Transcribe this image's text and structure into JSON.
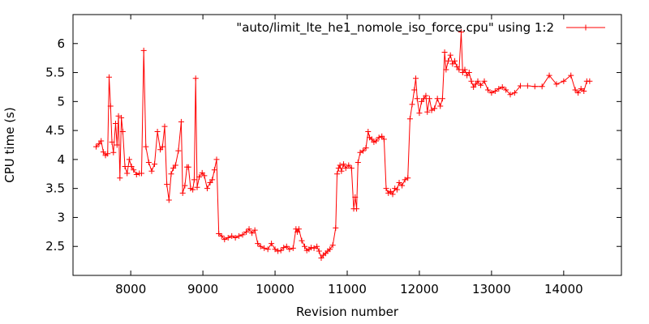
{
  "chart_data": {
    "type": "line",
    "title": "",
    "xlabel": "Revision number",
    "ylabel": "CPU time (s)",
    "xlim": [
      7200,
      14800
    ],
    "ylim": [
      2.0,
      6.5
    ],
    "xticks": [
      8000,
      9000,
      10000,
      11000,
      12000,
      13000,
      14000
    ],
    "yticks": [
      2.5,
      3,
      3.5,
      4,
      4.5,
      5,
      5.5,
      6
    ],
    "xtick_labels": [
      "8000",
      "9000",
      "10000",
      "11000",
      "12000",
      "13000",
      "14000"
    ],
    "ytick_labels": [
      "2.5",
      "3",
      "3.5",
      "4",
      "4.5",
      "5",
      "5.5",
      "6"
    ],
    "grid": false,
    "legend_position": "top-right",
    "colors": {
      "series": "#ff0000",
      "axes": "#000000"
    },
    "series": [
      {
        "name": "\"auto/limit_lte_he1_nomole_iso_force.cpu\" using 1:2",
        "marker": "plus",
        "points": [
          [
            7520,
            4.22
          ],
          [
            7560,
            4.27
          ],
          [
            7590,
            4.32
          ],
          [
            7620,
            4.13
          ],
          [
            7650,
            4.07
          ],
          [
            7680,
            4.1
          ],
          [
            7700,
            5.42
          ],
          [
            7720,
            4.92
          ],
          [
            7740,
            4.3
          ],
          [
            7760,
            4.12
          ],
          [
            7790,
            4.62
          ],
          [
            7810,
            4.25
          ],
          [
            7830,
            4.75
          ],
          [
            7850,
            3.68
          ],
          [
            7870,
            4.72
          ],
          [
            7890,
            4.48
          ],
          [
            7920,
            3.88
          ],
          [
            7950,
            3.76
          ],
          [
            7980,
            4.0
          ],
          [
            8010,
            3.88
          ],
          [
            8040,
            3.82
          ],
          [
            8080,
            3.74
          ],
          [
            8120,
            3.76
          ],
          [
            8150,
            3.76
          ],
          [
            8180,
            5.88
          ],
          [
            8210,
            4.22
          ],
          [
            8250,
            3.95
          ],
          [
            8290,
            3.8
          ],
          [
            8330,
            3.92
          ],
          [
            8370,
            4.48
          ],
          [
            8410,
            4.17
          ],
          [
            8440,
            4.22
          ],
          [
            8470,
            4.57
          ],
          [
            8500,
            3.57
          ],
          [
            8530,
            3.3
          ],
          [
            8560,
            3.75
          ],
          [
            8590,
            3.85
          ],
          [
            8620,
            3.9
          ],
          [
            8660,
            4.15
          ],
          [
            8700,
            4.65
          ],
          [
            8720,
            3.42
          ],
          [
            8750,
            3.55
          ],
          [
            8780,
            3.87
          ],
          [
            8800,
            3.87
          ],
          [
            8830,
            3.5
          ],
          [
            8860,
            3.48
          ],
          [
            8880,
            3.65
          ],
          [
            8900,
            5.4
          ],
          [
            8920,
            3.52
          ],
          [
            8950,
            3.7
          ],
          [
            8990,
            3.77
          ],
          [
            9020,
            3.72
          ],
          [
            9060,
            3.5
          ],
          [
            9100,
            3.6
          ],
          [
            9130,
            3.65
          ],
          [
            9160,
            3.82
          ],
          [
            9190,
            4.0
          ],
          [
            9220,
            2.72
          ],
          [
            9260,
            2.68
          ],
          [
            9300,
            2.62
          ],
          [
            9350,
            2.65
          ],
          [
            9400,
            2.68
          ],
          [
            9450,
            2.65
          ],
          [
            9500,
            2.68
          ],
          [
            9550,
            2.7
          ],
          [
            9600,
            2.75
          ],
          [
            9640,
            2.8
          ],
          [
            9680,
            2.73
          ],
          [
            9720,
            2.78
          ],
          [
            9760,
            2.55
          ],
          [
            9800,
            2.5
          ],
          [
            9850,
            2.47
          ],
          [
            9900,
            2.45
          ],
          [
            9950,
            2.55
          ],
          [
            10000,
            2.45
          ],
          [
            10040,
            2.42
          ],
          [
            10080,
            2.43
          ],
          [
            10120,
            2.48
          ],
          [
            10160,
            2.5
          ],
          [
            10200,
            2.45
          ],
          [
            10250,
            2.47
          ],
          [
            10290,
            2.8
          ],
          [
            10310,
            2.75
          ],
          [
            10330,
            2.8
          ],
          [
            10370,
            2.6
          ],
          [
            10410,
            2.5
          ],
          [
            10440,
            2.43
          ],
          [
            10470,
            2.45
          ],
          [
            10500,
            2.48
          ],
          [
            10540,
            2.47
          ],
          [
            10580,
            2.5
          ],
          [
            10610,
            2.42
          ],
          [
            10640,
            2.3
          ],
          [
            10670,
            2.35
          ],
          [
            10700,
            2.38
          ],
          [
            10730,
            2.42
          ],
          [
            10760,
            2.45
          ],
          [
            10800,
            2.52
          ],
          [
            10840,
            2.82
          ],
          [
            10860,
            3.75
          ],
          [
            10880,
            3.85
          ],
          [
            10900,
            3.9
          ],
          [
            10920,
            3.8
          ],
          [
            10950,
            3.92
          ],
          [
            10980,
            3.85
          ],
          [
            11020,
            3.9
          ],
          [
            11060,
            3.85
          ],
          [
            11090,
            3.15
          ],
          [
            11110,
            3.35
          ],
          [
            11130,
            3.15
          ],
          [
            11150,
            3.95
          ],
          [
            11180,
            4.12
          ],
          [
            11220,
            4.15
          ],
          [
            11260,
            4.2
          ],
          [
            11290,
            4.48
          ],
          [
            11310,
            4.38
          ],
          [
            11340,
            4.35
          ],
          [
            11370,
            4.3
          ],
          [
            11400,
            4.32
          ],
          [
            11440,
            4.38
          ],
          [
            11480,
            4.4
          ],
          [
            11510,
            4.35
          ],
          [
            11540,
            3.5
          ],
          [
            11570,
            3.42
          ],
          [
            11600,
            3.45
          ],
          [
            11630,
            3.4
          ],
          [
            11660,
            3.5
          ],
          [
            11690,
            3.48
          ],
          [
            11720,
            3.6
          ],
          [
            11760,
            3.55
          ],
          [
            11800,
            3.65
          ],
          [
            11840,
            3.68
          ],
          [
            11870,
            4.7
          ],
          [
            11900,
            4.95
          ],
          [
            11930,
            5.2
          ],
          [
            11950,
            5.4
          ],
          [
            11970,
            5.05
          ],
          [
            12000,
            4.8
          ],
          [
            12030,
            5.0
          ],
          [
            12060,
            5.05
          ],
          [
            12090,
            5.1
          ],
          [
            12110,
            4.82
          ],
          [
            12140,
            5.05
          ],
          [
            12170,
            4.85
          ],
          [
            12210,
            4.88
          ],
          [
            12250,
            5.05
          ],
          [
            12290,
            4.92
          ],
          [
            12320,
            5.05
          ],
          [
            12350,
            5.85
          ],
          [
            12370,
            5.55
          ],
          [
            12400,
            5.7
          ],
          [
            12430,
            5.8
          ],
          [
            12460,
            5.65
          ],
          [
            12490,
            5.7
          ],
          [
            12520,
            5.6
          ],
          [
            12550,
            5.55
          ],
          [
            12580,
            6.2
          ],
          [
            12600,
            5.5
          ],
          [
            12630,
            5.55
          ],
          [
            12660,
            5.45
          ],
          [
            12690,
            5.5
          ],
          [
            12720,
            5.35
          ],
          [
            12750,
            5.25
          ],
          [
            12780,
            5.3
          ],
          [
            12810,
            5.35
          ],
          [
            12850,
            5.28
          ],
          [
            12900,
            5.35
          ],
          [
            12950,
            5.2
          ],
          [
            13000,
            5.15
          ],
          [
            13050,
            5.18
          ],
          [
            13100,
            5.22
          ],
          [
            13150,
            5.25
          ],
          [
            13200,
            5.2
          ],
          [
            13260,
            5.12
          ],
          [
            13320,
            5.15
          ],
          [
            13400,
            5.27
          ],
          [
            13500,
            5.27
          ],
          [
            13600,
            5.26
          ],
          [
            13700,
            5.26
          ],
          [
            13800,
            5.45
          ],
          [
            13900,
            5.3
          ],
          [
            14000,
            5.35
          ],
          [
            14100,
            5.45
          ],
          [
            14160,
            5.2
          ],
          [
            14200,
            5.15
          ],
          [
            14240,
            5.22
          ],
          [
            14280,
            5.18
          ],
          [
            14320,
            5.35
          ],
          [
            14360,
            5.35
          ]
        ]
      }
    ]
  }
}
